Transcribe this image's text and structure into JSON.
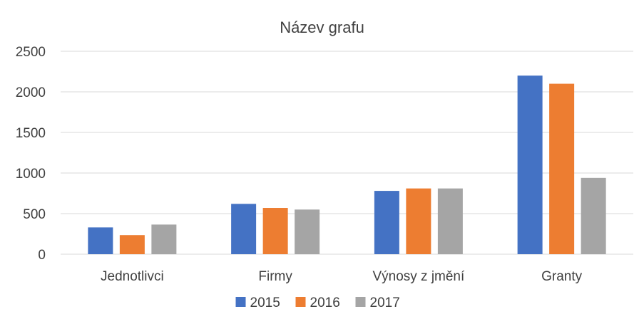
{
  "chart_data": {
    "type": "bar",
    "title": "Název grafu",
    "categories": [
      "Jednotlivci",
      "Firmy",
      "Výnosy z jmění",
      "Granty"
    ],
    "series": [
      {
        "name": "2015",
        "color": "#4472c4",
        "values": [
          330,
          620,
          780,
          2200
        ]
      },
      {
        "name": "2016",
        "color": "#ed7d31",
        "values": [
          235,
          570,
          810,
          2100
        ]
      },
      {
        "name": "2017",
        "color": "#a5a5a5",
        "values": [
          365,
          550,
          810,
          940
        ]
      }
    ],
    "ylim": [
      0,
      2500
    ],
    "yticks": [
      "0",
      "500",
      "1000",
      "1500",
      "2000",
      "2500"
    ],
    "grid": true,
    "legend": "bottom"
  }
}
